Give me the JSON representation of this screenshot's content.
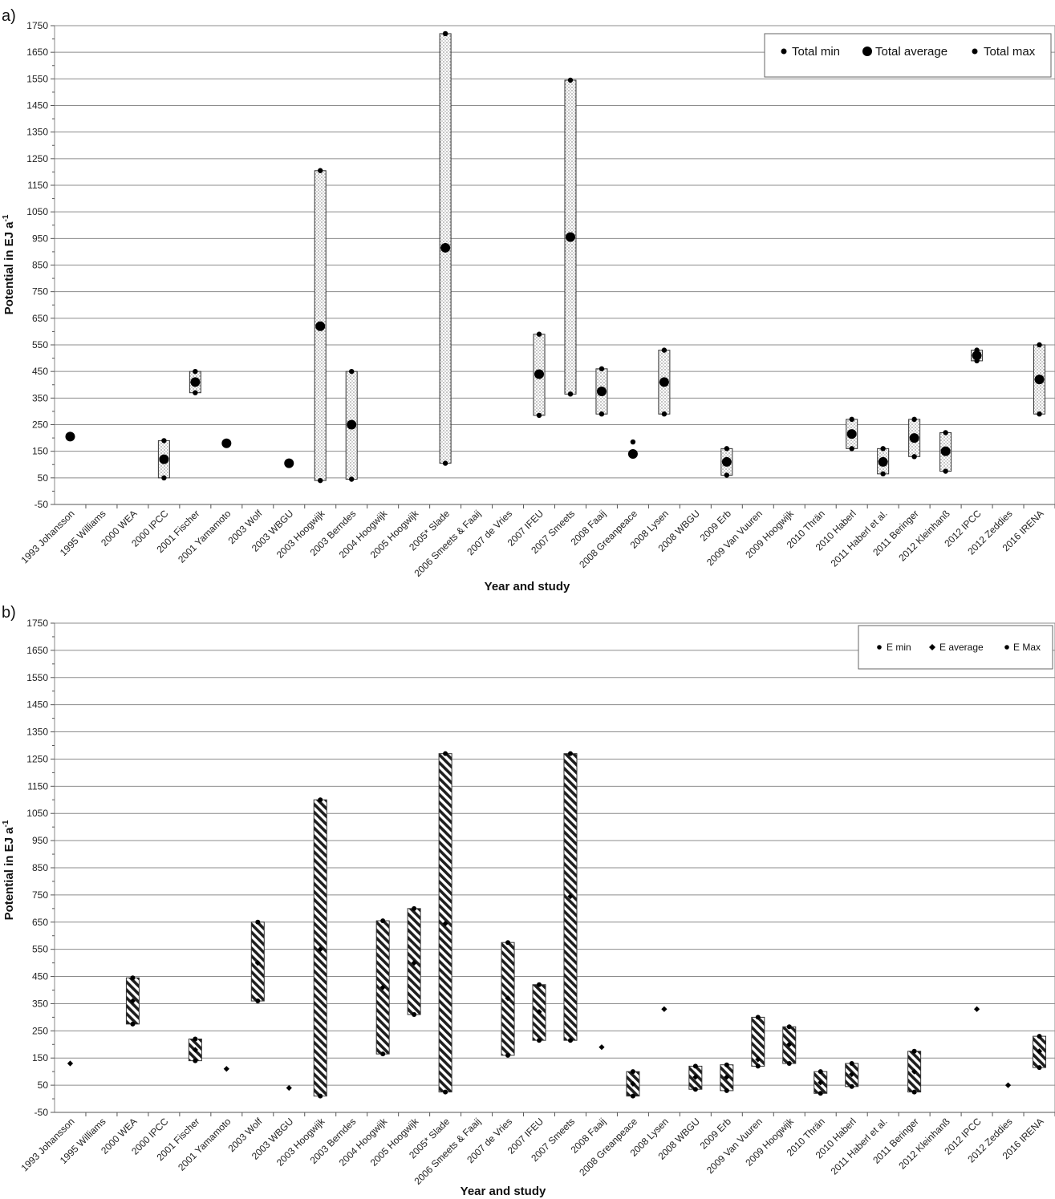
{
  "chart_data": [
    {
      "panel": "a)",
      "type": "range",
      "xlabel": "Year and study",
      "ylabel": "Potential in EJ a",
      "ylabel_sup": "-1",
      "ylim": [
        -50,
        1750
      ],
      "yticks": [
        -50,
        50,
        150,
        250,
        350,
        450,
        550,
        650,
        750,
        850,
        950,
        1050,
        1150,
        1250,
        1350,
        1450,
        1550,
        1650,
        1750
      ],
      "grid": "horizontal",
      "legend_position": "top-right",
      "legend": [
        "Total min",
        "Total average",
        "Total max"
      ],
      "categories": [
        "1993 Johansson",
        "1995 Williams",
        "2000 WEA",
        "2000 IPCC",
        "2001 Fischer",
        "2001 Yamamoto",
        "2003 Wolf",
        "2003 WBGU",
        "2003 Hoogwijk",
        "2003 Berndes",
        "2004 Hoogwijk",
        "2005 Hoogwijk",
        "2005* Slade",
        "2006 Smeets & Faaij",
        "2007 de Vries",
        "2007 IFEU",
        "2007 Smeets",
        "2008 Faaij",
        "2008 Greanpeace",
        "2008 Lysen",
        "2008 WBGU",
        "2009 Erb",
        "2009 Van Vuuren",
        "2009 Hoogwijk",
        "2010 Thrän",
        "2010 Haberl",
        "2011 Haberl et al.",
        "2011 Beringer",
        "2012 Kleinhanß",
        "2012 IPCC",
        "2012 Zeddies",
        "2016 IRENA"
      ],
      "series": [
        {
          "name": "Total min",
          "values": [
            null,
            null,
            null,
            50,
            370,
            null,
            null,
            null,
            40,
            45,
            null,
            null,
            105,
            null,
            null,
            285,
            365,
            290,
            null,
            290,
            null,
            60,
            null,
            null,
            null,
            160,
            65,
            130,
            75,
            490,
            null,
            290
          ]
        },
        {
          "name": "Total average",
          "values": [
            205,
            null,
            null,
            120,
            410,
            180,
            null,
            105,
            620,
            250,
            null,
            null,
            915,
            null,
            null,
            440,
            955,
            375,
            140,
            410,
            null,
            110,
            null,
            null,
            null,
            215,
            110,
            200,
            150,
            510,
            null,
            420
          ]
        },
        {
          "name": "Total max",
          "values": [
            null,
            null,
            null,
            190,
            450,
            null,
            null,
            null,
            1205,
            450,
            null,
            null,
            1720,
            null,
            null,
            590,
            1545,
            460,
            185,
            530,
            null,
            160,
            null,
            null,
            null,
            270,
            160,
            270,
            220,
            530,
            null,
            550
          ]
        }
      ]
    },
    {
      "panel": "b)",
      "type": "range",
      "xlabel": "Year and study",
      "ylabel": "Potential in EJ a",
      "ylabel_sup": "-1",
      "ylim": [
        -50,
        1750
      ],
      "yticks": [
        -50,
        50,
        150,
        250,
        350,
        450,
        550,
        650,
        750,
        850,
        950,
        1050,
        1150,
        1250,
        1350,
        1450,
        1550,
        1650,
        1750
      ],
      "grid": "horizontal",
      "legend_position": "top-right",
      "legend": [
        "E min",
        "E average",
        "E Max"
      ],
      "categories": [
        "1993 Johansson",
        "1995 Williams",
        "2000 WEA",
        "2000 IPCC",
        "2001 Fischer",
        "2001 Yamamoto",
        "2003 Wolf",
        "2003 WBGU",
        "2003 Hoogwijk",
        "2003 Berndes",
        "2004 Hoogwijk",
        "2005 Hoogwijk",
        "2005* Slade",
        "2006 Smeets & Faaij",
        "2007 de Vries",
        "2007 IFEU",
        "2007 Smeets",
        "2008 Faaij",
        "2008 Greanpeace",
        "2008 Lysen",
        "2008 WBGU",
        "2009 Erb",
        "2009 Van Vuuren",
        "2009 Hoogwijk",
        "2010 Thrän",
        "2010 Haberl",
        "2011 Haberl et al.",
        "2011 Beringer",
        "2012 Kleinhanß",
        "2012 IPCC",
        "2012 Zeddies",
        "2016 IRENA"
      ],
      "series": [
        {
          "name": "E min",
          "values": [
            null,
            null,
            275,
            null,
            140,
            null,
            360,
            null,
            10,
            null,
            165,
            310,
            25,
            null,
            160,
            215,
            215,
            null,
            10,
            null,
            35,
            30,
            120,
            130,
            20,
            45,
            null,
            25,
            null,
            null,
            null,
            115
          ]
        },
        {
          "name": "E average",
          "values": [
            130,
            null,
            360,
            null,
            180,
            110,
            500,
            40,
            550,
            null,
            410,
            500,
            645,
            null,
            370,
            320,
            745,
            190,
            55,
            330,
            80,
            80,
            145,
            200,
            60,
            90,
            null,
            100,
            null,
            330,
            50,
            175
          ]
        },
        {
          "name": "E Max",
          "values": [
            null,
            null,
            445,
            null,
            220,
            null,
            650,
            null,
            1100,
            null,
            655,
            700,
            1270,
            null,
            575,
            420,
            1270,
            null,
            100,
            null,
            120,
            125,
            300,
            265,
            100,
            130,
            null,
            175,
            null,
            null,
            null,
            230
          ]
        }
      ]
    }
  ]
}
